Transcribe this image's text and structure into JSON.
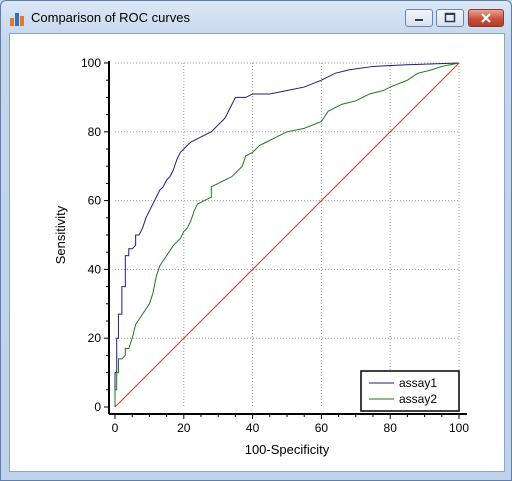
{
  "window": {
    "title": "Comparison of ROC curves",
    "icons": {
      "app": "bar-chart-icon",
      "minimize": "minimize-icon",
      "maximize": "maximize-icon",
      "close": "close-icon"
    },
    "colors": {
      "close_button": "#c8503b",
      "title_bar": "#c4d6ee"
    }
  },
  "chart_data": {
    "type": "line",
    "xlabel": "100-Specificity",
    "ylabel": "Sensitivity",
    "xlim": [
      0,
      100
    ],
    "ylim": [
      0,
      100
    ],
    "x_ticks": [
      0,
      20,
      40,
      60,
      80,
      100
    ],
    "y_ticks": [
      0,
      20,
      40,
      60,
      80,
      100
    ],
    "grid": true,
    "legend_position": "bottom-right",
    "series": [
      {
        "name": "assay1",
        "color": "#1f1f7a",
        "points": [
          [
            0,
            0
          ],
          [
            0,
            10
          ],
          [
            0.5,
            10
          ],
          [
            0.5,
            20
          ],
          [
            1,
            20
          ],
          [
            1,
            27
          ],
          [
            2,
            27
          ],
          [
            2,
            35
          ],
          [
            3,
            35
          ],
          [
            3,
            44
          ],
          [
            4,
            44
          ],
          [
            4,
            46
          ],
          [
            5,
            46
          ],
          [
            6,
            47
          ],
          [
            6,
            50
          ],
          [
            7,
            50
          ],
          [
            8,
            52
          ],
          [
            9,
            55
          ],
          [
            10,
            57
          ],
          [
            11,
            59
          ],
          [
            12,
            61
          ],
          [
            13,
            63
          ],
          [
            14,
            64
          ],
          [
            15,
            66
          ],
          [
            16,
            67
          ],
          [
            17,
            69
          ],
          [
            18,
            72
          ],
          [
            19,
            74
          ],
          [
            20,
            75
          ],
          [
            21,
            76
          ],
          [
            22,
            77
          ],
          [
            24,
            78
          ],
          [
            26,
            79
          ],
          [
            28,
            80
          ],
          [
            30,
            82
          ],
          [
            32,
            84
          ],
          [
            33,
            86
          ],
          [
            34,
            88
          ],
          [
            35,
            90
          ],
          [
            38,
            90
          ],
          [
            40,
            91
          ],
          [
            45,
            91
          ],
          [
            50,
            92
          ],
          [
            55,
            93
          ],
          [
            60,
            95
          ],
          [
            64,
            97
          ],
          [
            68,
            98
          ],
          [
            75,
            99
          ],
          [
            85,
            99.5
          ],
          [
            100,
            100
          ]
        ]
      },
      {
        "name": "assay2",
        "color": "#1a7a1a",
        "points": [
          [
            0,
            0
          ],
          [
            0,
            5
          ],
          [
            0.5,
            5
          ],
          [
            0.5,
            10
          ],
          [
            1,
            10
          ],
          [
            1,
            14
          ],
          [
            2,
            14
          ],
          [
            3,
            15
          ],
          [
            3,
            17
          ],
          [
            4,
            17
          ],
          [
            5,
            20
          ],
          [
            6,
            24
          ],
          [
            8,
            27
          ],
          [
            10,
            30
          ],
          [
            11,
            33
          ],
          [
            12,
            38
          ],
          [
            13,
            41
          ],
          [
            15,
            44
          ],
          [
            17,
            47
          ],
          [
            19,
            49
          ],
          [
            20,
            51
          ],
          [
            21,
            52
          ],
          [
            22,
            54
          ],
          [
            23,
            57
          ],
          [
            24,
            59
          ],
          [
            26,
            60
          ],
          [
            28,
            61
          ],
          [
            28,
            64
          ],
          [
            30,
            65
          ],
          [
            32,
            66
          ],
          [
            34,
            67
          ],
          [
            35,
            68
          ],
          [
            37,
            70
          ],
          [
            38,
            73
          ],
          [
            40,
            74
          ],
          [
            42,
            76
          ],
          [
            44,
            77
          ],
          [
            46,
            78
          ],
          [
            48,
            79
          ],
          [
            50,
            80
          ],
          [
            55,
            81
          ],
          [
            60,
            83
          ],
          [
            62,
            86
          ],
          [
            64,
            87
          ],
          [
            66,
            88
          ],
          [
            70,
            89
          ],
          [
            74,
            91
          ],
          [
            78,
            92
          ],
          [
            80,
            93
          ],
          [
            85,
            95
          ],
          [
            88,
            97
          ],
          [
            92,
            98
          ],
          [
            95,
            99
          ],
          [
            100,
            100
          ]
        ]
      },
      {
        "name": "",
        "color": "#c04020",
        "points": [
          [
            0,
            0
          ],
          [
            100,
            100
          ]
        ]
      }
    ]
  }
}
